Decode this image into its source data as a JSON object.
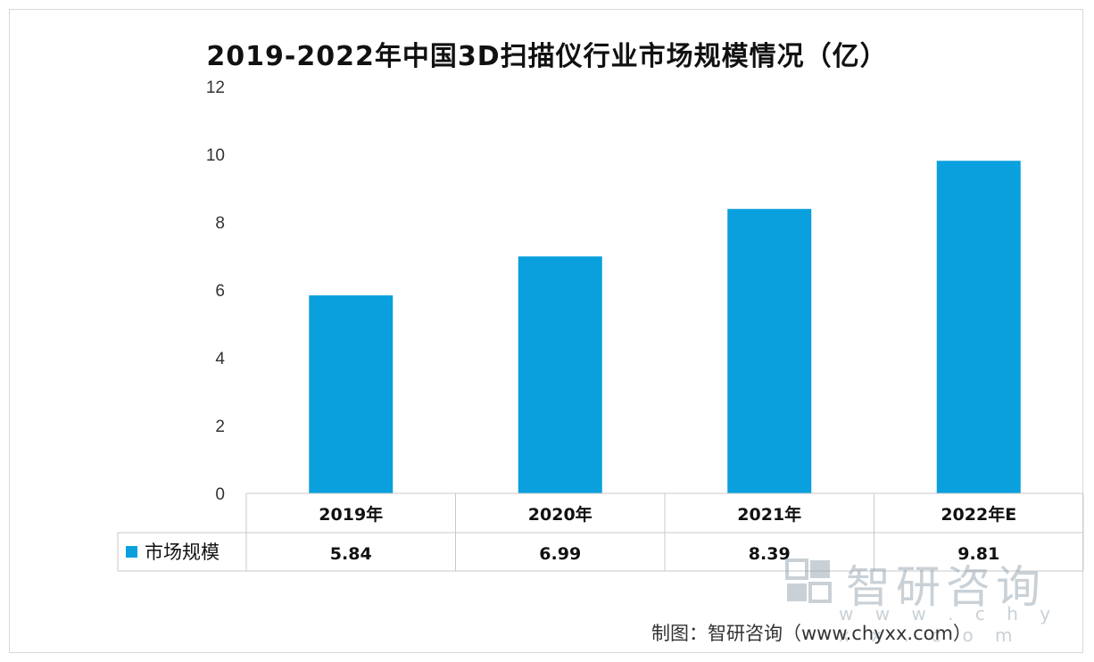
{
  "chart_data": {
    "type": "bar",
    "title": "2019-2022年中国3D扫描仪行业市场规模情况（亿）",
    "categories": [
      "2019年",
      "2020年",
      "2021年",
      "2022年E"
    ],
    "series": [
      {
        "name": "市场规模",
        "values": [
          5.84,
          6.99,
          8.39,
          9.81
        ]
      }
    ],
    "value_labels": [
      "5.84",
      "6.99",
      "8.39",
      "9.81"
    ],
    "yticks": [
      "0",
      "2",
      "4",
      "6",
      "8",
      "10",
      "12"
    ],
    "ylim": [
      0,
      12
    ],
    "grid": false,
    "legend": "data-table-left",
    "bar_color": "#0aa0de"
  },
  "watermark": {
    "name": "智研咨询",
    "url": "w w w . c h y x x . c o m"
  },
  "source": "制图：智研咨询（www.chyxx.com）"
}
